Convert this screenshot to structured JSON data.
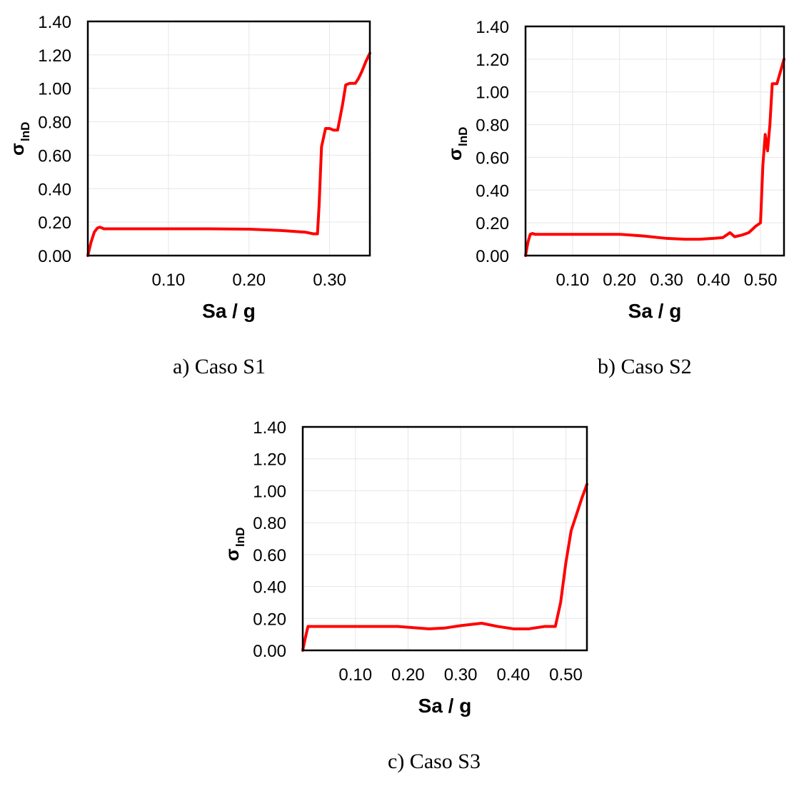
{
  "chart_data": [
    {
      "type": "line",
      "caption": "a)  Caso S1",
      "xlabel": "Sa / g",
      "ylabel": "σ",
      "ylabel_sub": "lnD",
      "xlim": [
        0,
        0.35
      ],
      "ylim": [
        0,
        1.4
      ],
      "xticks": [
        0.1,
        0.2,
        0.3
      ],
      "xtick_labels": [
        "0.10",
        "0.20",
        "0.30"
      ],
      "yticks": [
        0,
        0.2,
        0.4,
        0.6,
        0.8,
        1.0,
        1.2,
        1.4
      ],
      "ytick_labels": [
        "0.00",
        "0.20",
        "0.40",
        "0.60",
        "0.80",
        "1.00",
        "1.20",
        "1.40"
      ],
      "grid": true,
      "series": [
        {
          "color": "#ff0000",
          "x": [
            0.0,
            0.004,
            0.008,
            0.012,
            0.015,
            0.02,
            0.05,
            0.1,
            0.15,
            0.2,
            0.24,
            0.27,
            0.28,
            0.285,
            0.287,
            0.29,
            0.295,
            0.3,
            0.305,
            0.31,
            0.316,
            0.32,
            0.325,
            0.332,
            0.336,
            0.34,
            0.345,
            0.35
          ],
          "y": [
            0.0,
            0.08,
            0.14,
            0.165,
            0.17,
            0.16,
            0.16,
            0.16,
            0.16,
            0.158,
            0.15,
            0.14,
            0.13,
            0.13,
            0.3,
            0.65,
            0.76,
            0.76,
            0.75,
            0.75,
            0.9,
            1.02,
            1.03,
            1.03,
            1.06,
            1.1,
            1.16,
            1.21
          ]
        }
      ]
    },
    {
      "type": "line",
      "caption": "b) Caso S2",
      "xlabel": "Sa / g",
      "ylabel": "σ",
      "ylabel_sub": "lnD",
      "xlim": [
        0,
        0.55
      ],
      "ylim": [
        0,
        1.4
      ],
      "xticks": [
        0.1,
        0.2,
        0.3,
        0.4,
        0.5
      ],
      "xtick_labels": [
        "0.10",
        "0.20",
        "0.30",
        "0.40",
        "0.50"
      ],
      "yticks": [
        0,
        0.2,
        0.4,
        0.6,
        0.8,
        1.0,
        1.2,
        1.4
      ],
      "ytick_labels": [
        "0.00",
        "0.20",
        "0.40",
        "0.60",
        "0.80",
        "1.00",
        "1.20",
        "1.40"
      ],
      "grid": true,
      "series": [
        {
          "color": "#ff0000",
          "x": [
            0.0,
            0.005,
            0.01,
            0.015,
            0.02,
            0.1,
            0.2,
            0.25,
            0.3,
            0.34,
            0.37,
            0.4,
            0.42,
            0.435,
            0.445,
            0.46,
            0.475,
            0.49,
            0.5,
            0.505,
            0.51,
            0.515,
            0.52,
            0.525,
            0.53,
            0.535,
            0.54,
            0.545,
            0.55
          ],
          "y": [
            0.0,
            0.08,
            0.13,
            0.135,
            0.13,
            0.13,
            0.13,
            0.12,
            0.105,
            0.1,
            0.1,
            0.105,
            0.11,
            0.14,
            0.115,
            0.125,
            0.14,
            0.18,
            0.2,
            0.55,
            0.74,
            0.64,
            0.8,
            1.05,
            1.05,
            1.05,
            1.1,
            1.15,
            1.2
          ]
        }
      ]
    },
    {
      "type": "line",
      "caption": "c) Caso S3",
      "xlabel": "Sa / g",
      "ylabel": "σ",
      "ylabel_sub": "lnD",
      "xlim": [
        0,
        0.54
      ],
      "ylim": [
        0,
        1.4
      ],
      "xticks": [
        0.1,
        0.2,
        0.3,
        0.4,
        0.5
      ],
      "xtick_labels": [
        "0.10",
        "0.20",
        "0.30",
        "0.40",
        "0.50"
      ],
      "yticks": [
        0,
        0.2,
        0.4,
        0.6,
        0.8,
        1.0,
        1.2,
        1.4
      ],
      "ytick_labels": [
        "0.00",
        "0.20",
        "0.40",
        "0.60",
        "0.80",
        "1.00",
        "1.20",
        "1.40"
      ],
      "grid": true,
      "series": [
        {
          "color": "#ff0000",
          "x": [
            0.0,
            0.005,
            0.01,
            0.015,
            0.1,
            0.18,
            0.24,
            0.27,
            0.3,
            0.34,
            0.37,
            0.4,
            0.43,
            0.46,
            0.48,
            0.49,
            0.5,
            0.51,
            0.52,
            0.53,
            0.54
          ],
          "y": [
            0.0,
            0.08,
            0.15,
            0.15,
            0.15,
            0.15,
            0.135,
            0.14,
            0.155,
            0.17,
            0.15,
            0.135,
            0.135,
            0.15,
            0.15,
            0.3,
            0.55,
            0.75,
            0.85,
            0.95,
            1.04
          ]
        }
      ]
    }
  ]
}
